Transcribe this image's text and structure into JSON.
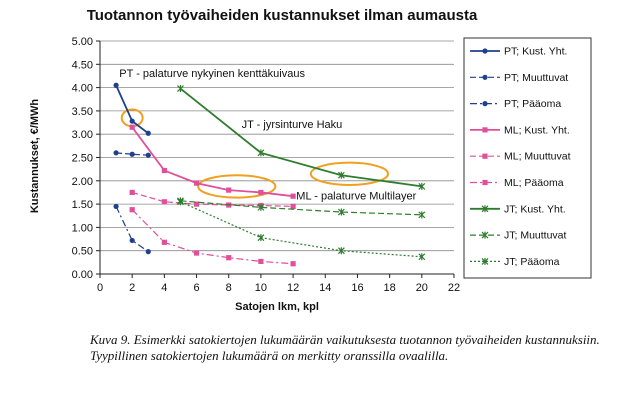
{
  "chart_data": {
    "type": "line",
    "title": "Tuotannon työvaiheiden kustannukset ilman aumausta",
    "xlabel": "Satojen lkm, kpl",
    "ylabel": "Kustannukset, €/MWh",
    "xlim": [
      0,
      22
    ],
    "ylim": [
      0,
      5
    ],
    "x_ticks": [
      "0",
      "2",
      "4",
      "6",
      "8",
      "10",
      "12",
      "14",
      "16",
      "18",
      "20",
      "22"
    ],
    "y_ticks": [
      "0.00",
      "0.50",
      "1.00",
      "1.50",
      "2.00",
      "2.50",
      "3.00",
      "3.50",
      "4.00",
      "4.50",
      "5.00"
    ],
    "grid": "horizontal",
    "legend_position": "right",
    "series": [
      {
        "name": "PT; Kust. Yht.",
        "color": "#1f3f8f",
        "style": "solid",
        "marker": "circle",
        "x": [
          1,
          2,
          3
        ],
        "y": [
          4.05,
          3.28,
          3.02
        ]
      },
      {
        "name": "PT; Muuttuvat",
        "color": "#1f3f8f",
        "style": "dashed",
        "marker": "circle",
        "x": [
          1,
          2,
          3
        ],
        "y": [
          2.6,
          2.57,
          2.55
        ]
      },
      {
        "name": "PT; Pääoma",
        "color": "#1f3f8f",
        "style": "dashdot",
        "marker": "circle",
        "x": [
          1,
          2,
          3
        ],
        "y": [
          1.45,
          0.72,
          0.48
        ]
      },
      {
        "name": "ML; Kust. Yht.",
        "color": "#e0509a",
        "style": "solid",
        "marker": "square",
        "x": [
          2,
          4,
          6,
          8,
          10,
          12
        ],
        "y": [
          3.15,
          2.22,
          1.95,
          1.8,
          1.75,
          1.67
        ]
      },
      {
        "name": "ML; Muuttuvat",
        "color": "#e0509a",
        "style": "dashed",
        "marker": "square",
        "x": [
          2,
          4,
          6,
          8,
          10,
          12
        ],
        "y": [
          1.75,
          1.55,
          1.5,
          1.48,
          1.47,
          1.45
        ]
      },
      {
        "name": "ML; Pääoma",
        "color": "#e0509a",
        "style": "dashdot",
        "marker": "square",
        "x": [
          2,
          4,
          6,
          8,
          10,
          12
        ],
        "y": [
          1.38,
          0.68,
          0.45,
          0.35,
          0.27,
          0.22
        ]
      },
      {
        "name": "JT; Kust. Yht.",
        "color": "#2e7d2e",
        "style": "solid",
        "marker": "star",
        "x": [
          5,
          10,
          15,
          20
        ],
        "y": [
          3.98,
          2.6,
          2.12,
          1.88
        ]
      },
      {
        "name": "JT; Muuttuvat",
        "color": "#2e7d2e",
        "style": "dashed",
        "marker": "star",
        "x": [
          5,
          10,
          15,
          20
        ],
        "y": [
          1.57,
          1.43,
          1.33,
          1.27
        ]
      },
      {
        "name": "JT; Pääoma",
        "color": "#2e7d2e",
        "style": "dotted",
        "marker": "star",
        "x": [
          5,
          10,
          15,
          20
        ],
        "y": [
          1.55,
          0.78,
          0.5,
          0.37
        ]
      }
    ],
    "annotations": [
      {
        "text": "PT - palaturve nykyinen kenttäkuivaus",
        "x": 1.2,
        "y": 4.23
      },
      {
        "text": "JT - jyrsinturve Haku",
        "x": 8.8,
        "y": 3.13
      },
      {
        "text": "ML - palaturve Multilayer",
        "x": 12.2,
        "y": 1.6
      }
    ],
    "highlight_ovals": [
      {
        "cx": 2,
        "cy": 3.35,
        "rx": 0.65,
        "ry": 0.18,
        "color": "#f0a020"
      },
      {
        "cx": 8.5,
        "cy": 1.88,
        "rx": 2.4,
        "ry": 0.24,
        "color": "#f0a020"
      },
      {
        "cx": 15.5,
        "cy": 2.15,
        "rx": 2.4,
        "ry": 0.24,
        "color": "#f0a020"
      }
    ]
  },
  "caption": "Kuva 9. Esimerkki satokiertojen lukumäärän vaikutuksesta tuotannon työvaiheiden kustannuksiin. Tyypillinen satokiertojen lukumäärä on merkitty oranssilla ovaalilla."
}
